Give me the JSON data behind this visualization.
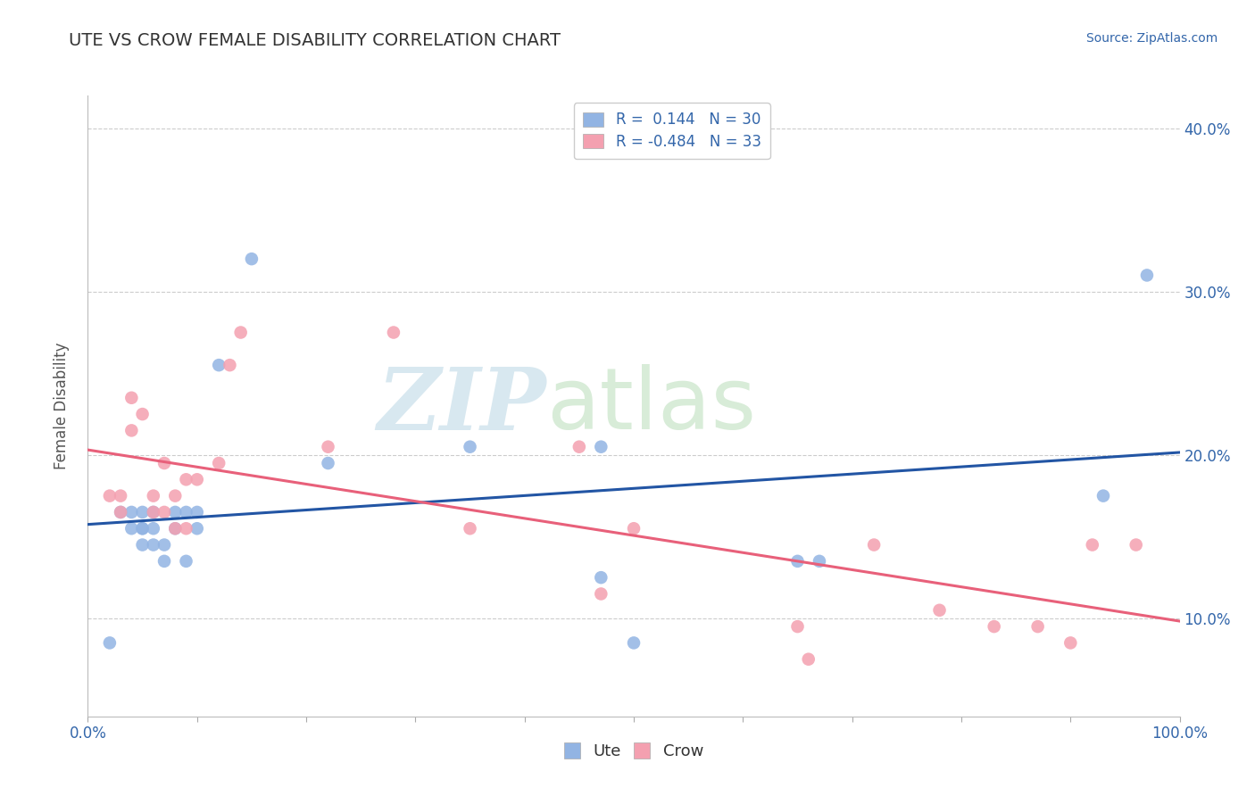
{
  "title": "UTE VS CROW FEMALE DISABILITY CORRELATION CHART",
  "source": "Source: ZipAtlas.com",
  "ylabel": "Female Disability",
  "xlim": [
    0.0,
    1.0
  ],
  "ylim": [
    0.04,
    0.42
  ],
  "ytick_positions": [
    0.1,
    0.2,
    0.3,
    0.4
  ],
  "ytick_labels": [
    "10.0%",
    "20.0%",
    "30.0%",
    "40.0%"
  ],
  "xtick_positions": [
    0.0,
    0.1,
    0.2,
    0.3,
    0.4,
    0.5,
    0.6,
    0.7,
    0.8,
    0.9,
    1.0
  ],
  "xtick_labels": [
    "0.0%",
    "",
    "",
    "",
    "",
    "",
    "",
    "",
    "",
    "",
    "100.0%"
  ],
  "ute_R": 0.144,
  "ute_N": 30,
  "crow_R": -0.484,
  "crow_N": 33,
  "ute_color": "#92b4e3",
  "crow_color": "#f4a0b0",
  "ute_line_color": "#2255a4",
  "crow_line_color": "#e8607a",
  "ute_x": [
    0.02,
    0.03,
    0.04,
    0.04,
    0.05,
    0.05,
    0.05,
    0.05,
    0.06,
    0.06,
    0.06,
    0.07,
    0.07,
    0.08,
    0.08,
    0.09,
    0.09,
    0.1,
    0.1,
    0.12,
    0.15,
    0.22,
    0.35,
    0.47,
    0.47,
    0.5,
    0.65,
    0.67,
    0.93,
    0.97
  ],
  "ute_y": [
    0.085,
    0.165,
    0.165,
    0.155,
    0.165,
    0.155,
    0.155,
    0.145,
    0.165,
    0.155,
    0.145,
    0.145,
    0.135,
    0.165,
    0.155,
    0.165,
    0.135,
    0.165,
    0.155,
    0.255,
    0.32,
    0.195,
    0.205,
    0.205,
    0.125,
    0.085,
    0.135,
    0.135,
    0.175,
    0.31
  ],
  "crow_x": [
    0.02,
    0.03,
    0.03,
    0.04,
    0.04,
    0.05,
    0.06,
    0.06,
    0.07,
    0.07,
    0.08,
    0.08,
    0.09,
    0.09,
    0.1,
    0.12,
    0.13,
    0.14,
    0.22,
    0.28,
    0.35,
    0.45,
    0.47,
    0.5,
    0.65,
    0.66,
    0.72,
    0.78,
    0.83,
    0.87,
    0.9,
    0.92,
    0.96
  ],
  "crow_y": [
    0.175,
    0.175,
    0.165,
    0.235,
    0.215,
    0.225,
    0.175,
    0.165,
    0.195,
    0.165,
    0.175,
    0.155,
    0.185,
    0.155,
    0.185,
    0.195,
    0.255,
    0.275,
    0.205,
    0.275,
    0.155,
    0.205,
    0.115,
    0.155,
    0.095,
    0.075,
    0.145,
    0.105,
    0.095,
    0.095,
    0.085,
    0.145,
    0.145
  ],
  "watermark_zip": "ZIP",
  "watermark_atlas": "atlas",
  "background_color": "#ffffff",
  "grid_color": "#cccccc"
}
